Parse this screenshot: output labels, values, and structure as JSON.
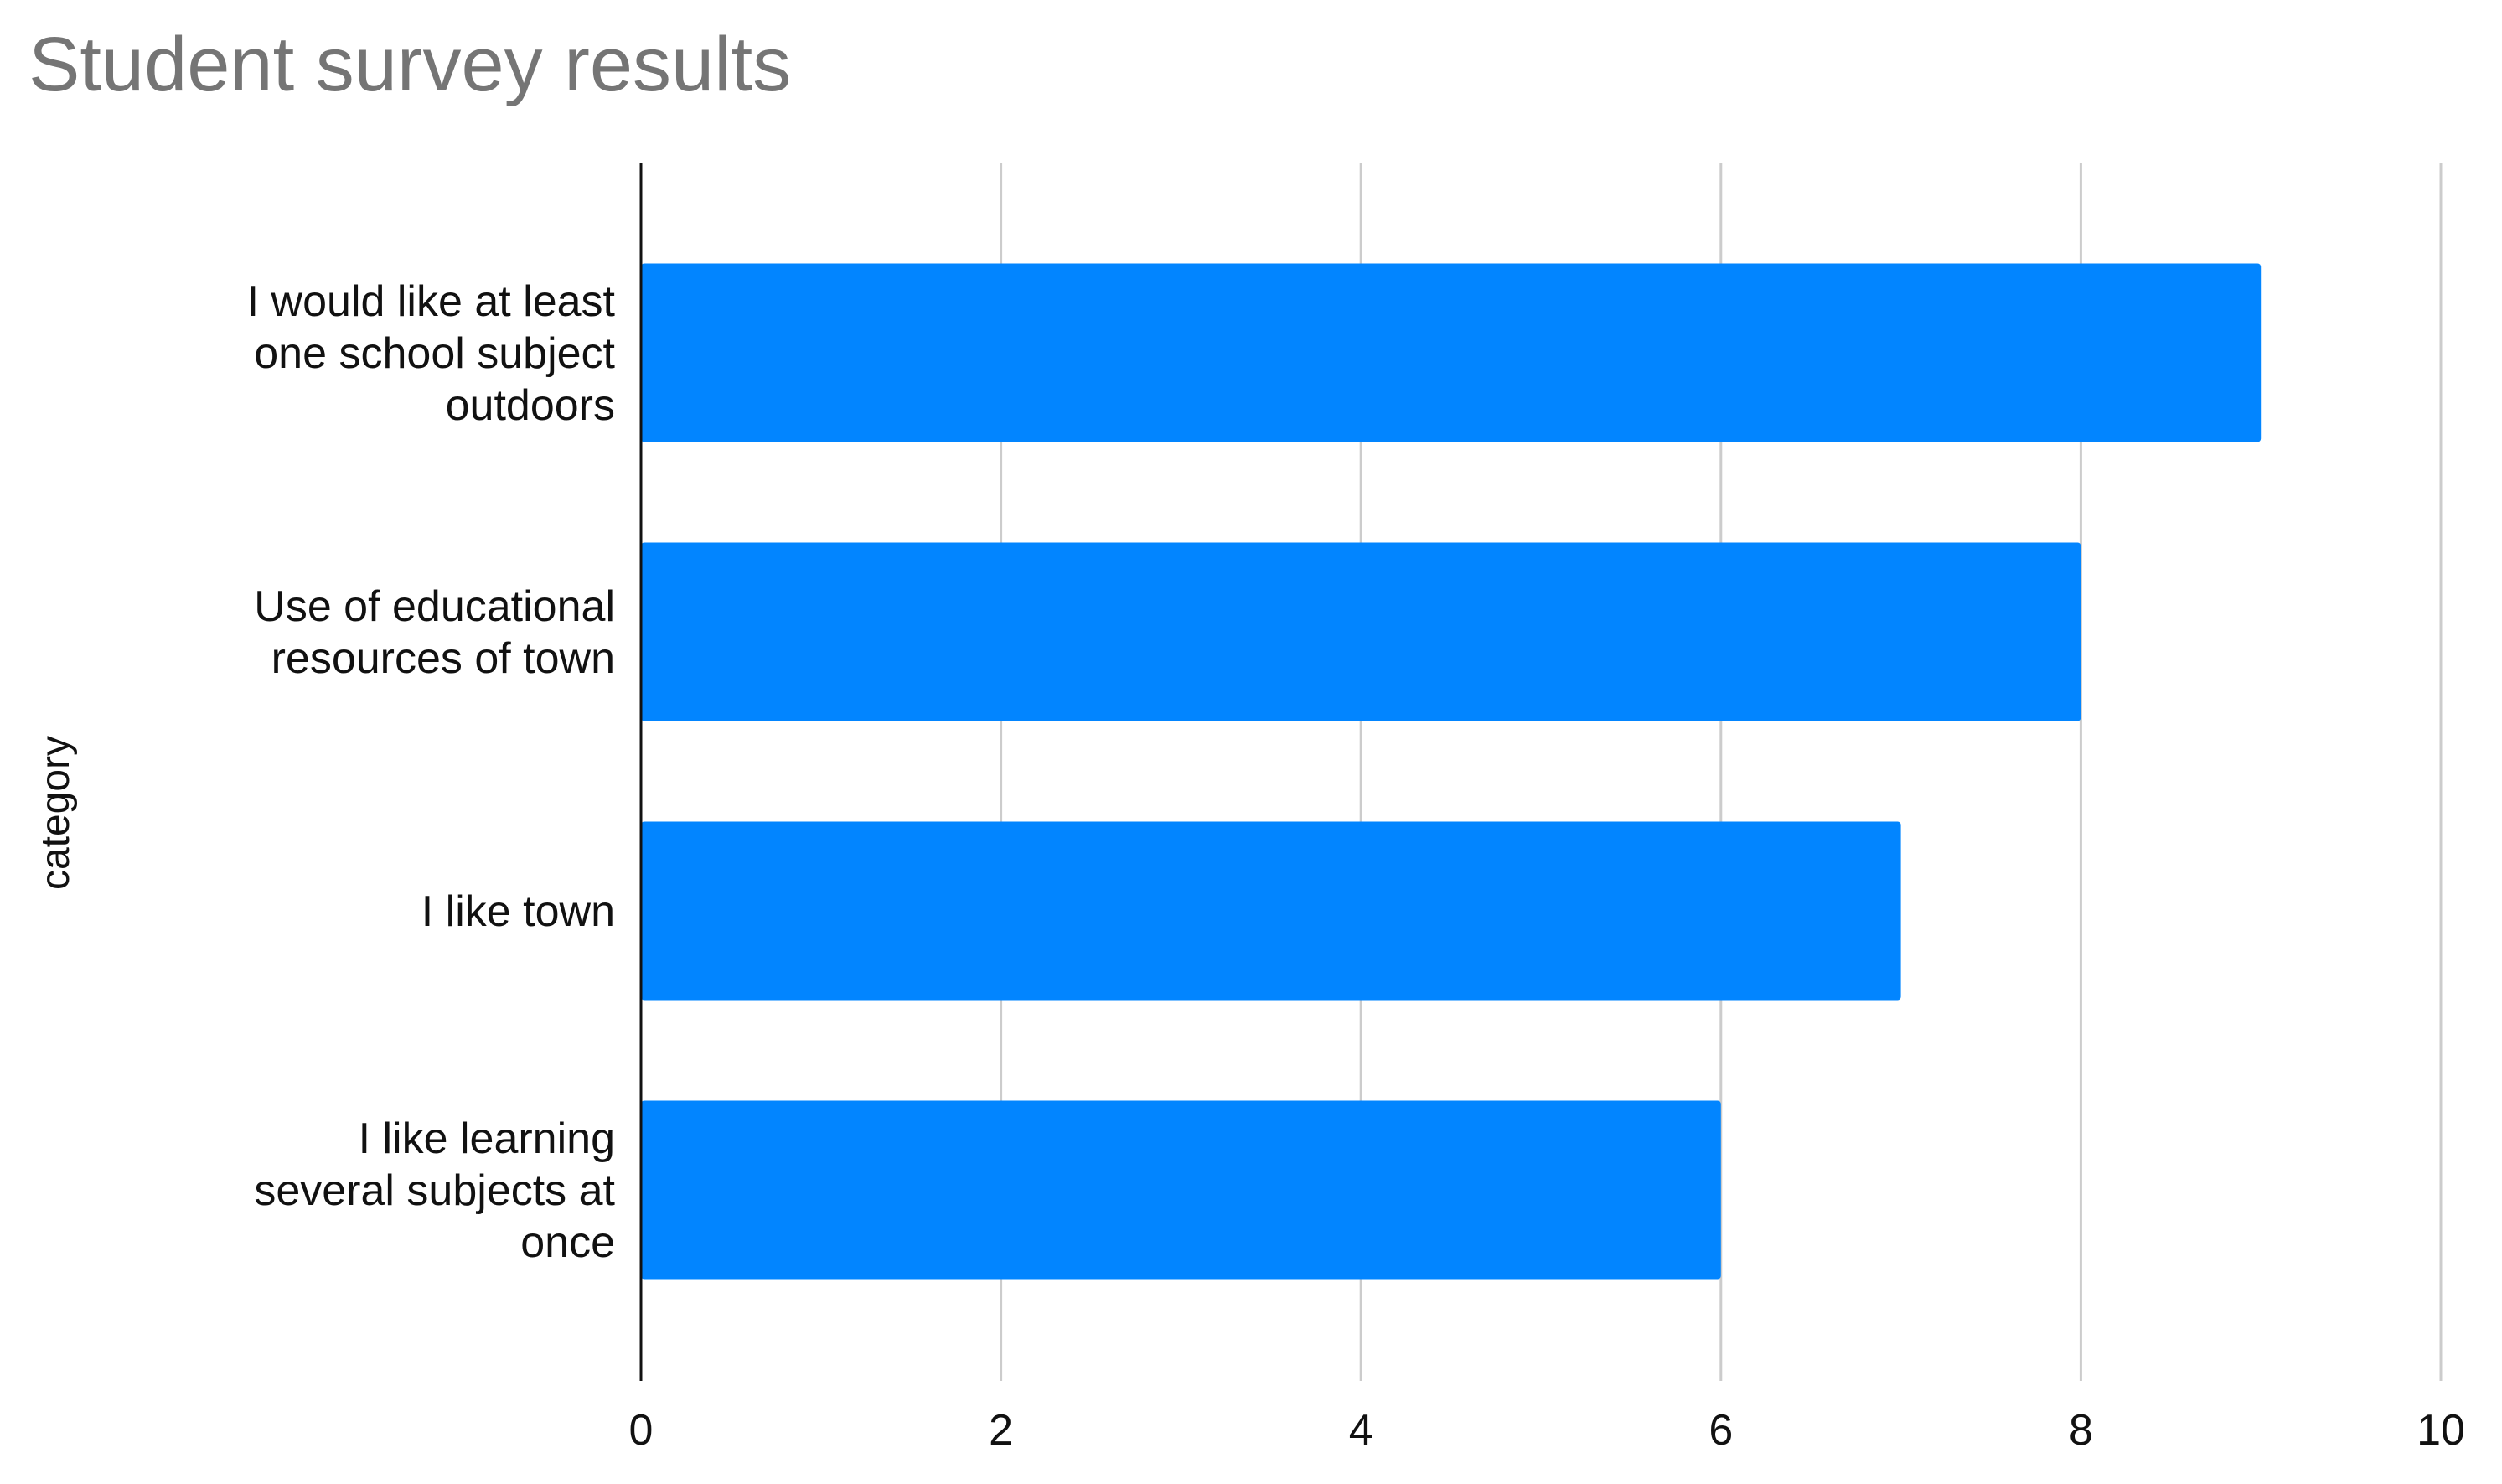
{
  "chart_data": {
    "type": "bar",
    "orientation": "horizontal",
    "title": "Student survey results",
    "xlabel": "",
    "ylabel": "category",
    "categories": [
      "I would like at least one school subject outdoors",
      "Use of educational resources of town",
      "I like town",
      "I like learning several subjects at once"
    ],
    "category_label_lines": [
      [
        "I would like at least",
        "one school subject",
        "outdoors"
      ],
      [
        "Use of educational",
        "resources of town"
      ],
      [
        "I like town"
      ],
      [
        "I like learning",
        "several subjects at",
        "once"
      ]
    ],
    "values": [
      9,
      8,
      7,
      6
    ],
    "xlim": [
      0,
      10
    ],
    "xticks": [
      0,
      2,
      4,
      6,
      8,
      10
    ],
    "grid": true,
    "legend": "none",
    "colors": {
      "bar": "#0285FF",
      "grid": "#CCCCCC",
      "axis": "#111111",
      "title": "#757575"
    }
  }
}
